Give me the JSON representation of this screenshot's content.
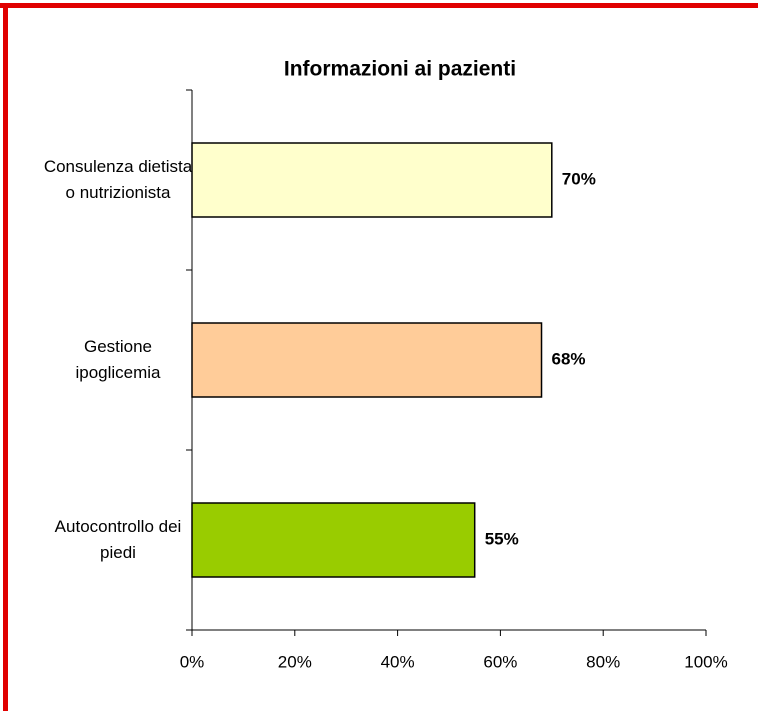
{
  "chart_data": {
    "type": "bar",
    "orientation": "horizontal",
    "title": "Informazioni ai pazienti",
    "categories": [
      "Consulenza dietista o nutrizionista",
      "Gestione ipoglicemia",
      "Autocontrollo dei piedi"
    ],
    "values": [
      70,
      68,
      55
    ],
    "value_labels": [
      "70%",
      "68%",
      "55%"
    ],
    "colors": [
      "#ffffcc",
      "#ffcc99",
      "#99cc00"
    ],
    "xlim": [
      0,
      100
    ],
    "xticks": [
      {
        "value": 0,
        "label": "0%"
      },
      {
        "value": 20,
        "label": "20%"
      },
      {
        "value": 40,
        "label": "40%"
      },
      {
        "value": 60,
        "label": "60%"
      },
      {
        "value": 80,
        "label": "80%"
      },
      {
        "value": 100,
        "label": "100%"
      }
    ],
    "grid": false
  }
}
